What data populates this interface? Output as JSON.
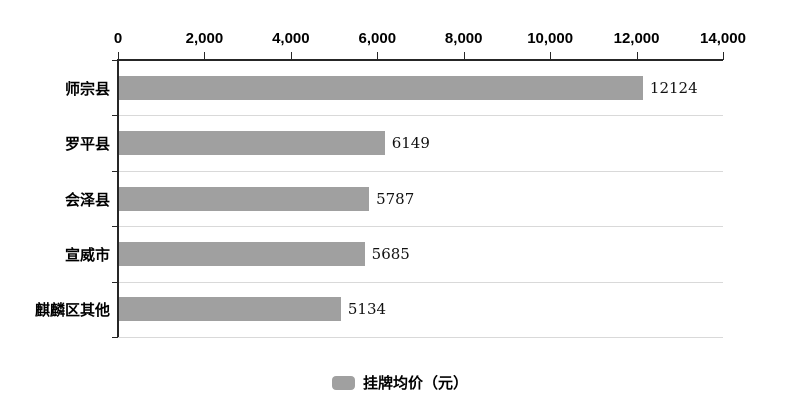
{
  "chart_data": {
    "type": "bar",
    "orientation": "horizontal",
    "title": "",
    "categories": [
      "师宗县",
      "罗平县",
      "会泽县",
      "宣威市",
      "麒麟区其他"
    ],
    "values": [
      12124,
      6149,
      5787,
      5685,
      5134
    ],
    "value_labels": [
      "12124",
      "6149",
      "5787",
      "5685",
      "5134"
    ],
    "legend": "挂牌均价（元）",
    "legend_position": "bottom",
    "xlim": [
      0,
      14000
    ],
    "xticks": [
      0,
      2000,
      4000,
      6000,
      8000,
      10000,
      12000,
      14000
    ],
    "xtick_labels": [
      "0",
      "2,000",
      "4,000",
      "6,000",
      "8,000",
      "10,000",
      "12,000",
      "14,000"
    ],
    "xaxis_position": "top",
    "grid": "row-boundaries",
    "colors": {
      "bar": "#a0a0a0",
      "axis": "#262626",
      "gridline": "#d9d9d9",
      "text": "#000000",
      "background": "#ffffff"
    }
  }
}
